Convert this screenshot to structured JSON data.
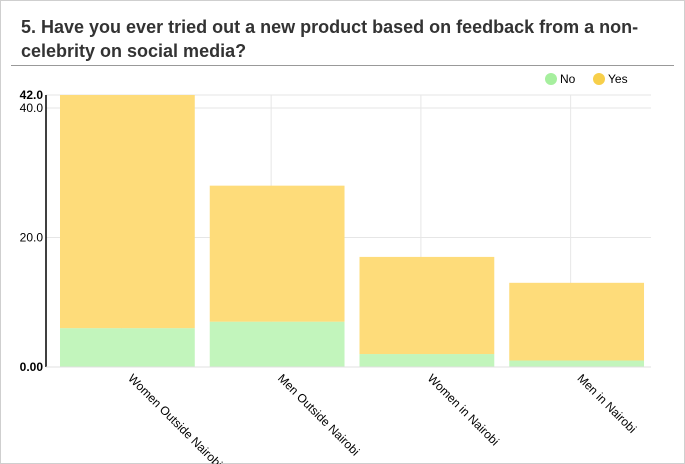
{
  "title": "5. Have you ever tried out a new product based on feedback from a non-celebrity on social media?",
  "chart_data": {
    "type": "bar",
    "stacked": true,
    "title": "5. Have you ever tried out a new product based on feedback from a non-celebrity on social media?",
    "categories": [
      "Women Outside Nairobi",
      "Men Outside Nairobi",
      "Women in Nairobi",
      "Men in Nairobi"
    ],
    "series": [
      {
        "name": "No",
        "color": "#c2f5bc",
        "values": [
          6,
          7,
          2,
          1
        ]
      },
      {
        "name": "Yes",
        "color": "#fedc7a",
        "values": [
          36,
          21,
          15,
          12
        ]
      }
    ],
    "ylim": [
      0,
      42
    ],
    "yticks": [
      0,
      20,
      40
    ],
    "ytick_labels": [
      "0.00",
      "20.0",
      "40.0"
    ],
    "ymax_label": "42.0",
    "legend": {
      "position": "top-right",
      "items": [
        {
          "name": "No",
          "color": "#a6ef9e"
        },
        {
          "name": "Yes",
          "color": "#f7cf4a"
        }
      ]
    },
    "grid": true
  }
}
